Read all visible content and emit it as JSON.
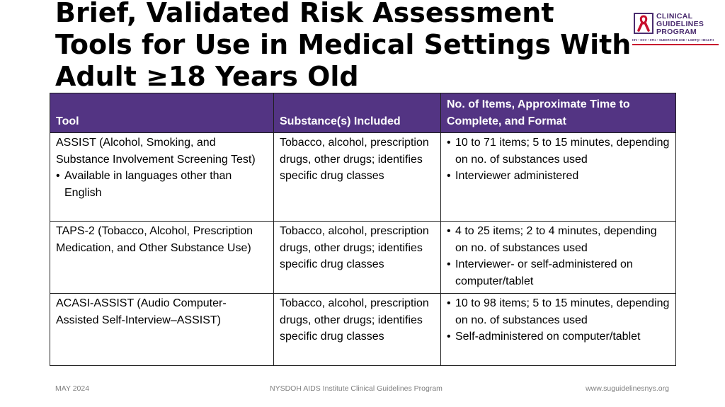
{
  "slide": {
    "title": "Brief, Validated Risk Assessment Tools for Use in Medical Settings With Adult ≥18 Years Old"
  },
  "logo": {
    "line1": "CLINICAL",
    "line2": "GUIDELINES",
    "line3": "PROGRAM",
    "tagline": "HIV • HCV • STIs • SUBSTANCE USE • LGBTQ+ HEALTH",
    "colors": {
      "text": "#4a2c6f",
      "ribbon": "#c8102e"
    },
    "icon": "red-ribbon-icon"
  },
  "table": {
    "header_color": "#533483",
    "headers": [
      "Tool",
      "Substance(s) Included",
      "No. of Items, Approximate Time to Complete, and Format"
    ],
    "rows": [
      {
        "tool": "ASSIST (Alcohol, Smoking, and Substance Involvement Screening Test)",
        "tool_bullets": [
          "Available in languages other than English"
        ],
        "substances": "Tobacco, alcohol, prescription drugs, other drugs; identifies specific drug classes",
        "format_bullets": [
          "10 to 71 items; 5 to 15 minutes, depending on no. of substances used",
          "Interviewer administered"
        ]
      },
      {
        "tool": "TAPS-2 (Tobacco, Alcohol, Prescription Medication, and Other Substance Use)",
        "substances": "Tobacco, alcohol, prescription drugs, other drugs; identifies specific drug classes",
        "format_bullets": [
          "4 to 25 items; 2 to 4 minutes, depending on no. of substances used",
          "Interviewer- or self-administered on computer/tablet"
        ]
      },
      {
        "tool": "ACASI-ASSIST (Audio Computer-Assisted Self-Interview–ASSIST)",
        "substances": "Tobacco, alcohol, prescription drugs, other drugs; identifies specific drug classes",
        "format_bullets": [
          "10 to 98 items; 5 to 15 minutes, depending on no. of substances used",
          "Self-administered on computer/tablet"
        ]
      }
    ]
  },
  "footer": {
    "date": "MAY 2024",
    "center": "NYSDOH AIDS Institute Clinical Guidelines Program",
    "url": "www.suguidelinesnys.org"
  }
}
